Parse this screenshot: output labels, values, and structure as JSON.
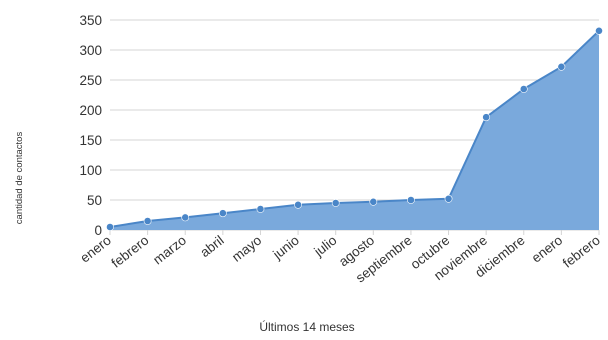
{
  "chart_data": {
    "type": "area",
    "title": "",
    "xlabel": "Últimos 14 meses",
    "ylabel": "cantidad de contactos",
    "categories": [
      "enero",
      "febrero",
      "marzo",
      "abril",
      "mayo",
      "junio",
      "julio",
      "agosto",
      "septiembre",
      "octubre",
      "noviembre",
      "diciembre",
      "enero",
      "febrero"
    ],
    "values": [
      5,
      15,
      21,
      28,
      35,
      42,
      45,
      47,
      50,
      52,
      188,
      235,
      272,
      332
    ],
    "ylim": [
      0,
      350
    ],
    "yticks": [
      0,
      50,
      100,
      150,
      200,
      250,
      300,
      350
    ],
    "ytick_labels": [
      "0",
      "50",
      "100",
      "150",
      "200",
      "250",
      "300",
      "350"
    ],
    "grid": true,
    "legend": "none",
    "colors": {
      "fill": "#7aa9dc",
      "line": "#4a86c8",
      "marker": "#4a86c8",
      "grid": "#d4d4d4",
      "text": "#333333"
    }
  }
}
